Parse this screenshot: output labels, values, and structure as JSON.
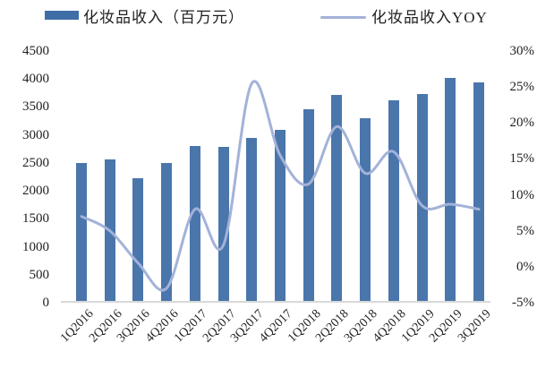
{
  "legend": {
    "bar_label": "化妆品收入（百万元）",
    "line_label": "化妆品收入YOY"
  },
  "chart_data": {
    "type": "bar",
    "subtype": "bar+line combo, dual axis",
    "title": "",
    "xlabel": "",
    "ylabel_left": "",
    "ylabel_right": "",
    "grid": false,
    "legend_position": "top",
    "categories": [
      "1Q2016",
      "2Q2016",
      "3Q2016",
      "4Q2016",
      "1Q2017",
      "2Q2017",
      "3Q2017",
      "4Q2017",
      "1Q2018",
      "2Q2018",
      "3Q2018",
      "4Q2018",
      "1Q2019",
      "2Q2019",
      "3Q2019"
    ],
    "series": [
      {
        "name": "化妆品收入（百万元）",
        "type": "bar",
        "axis": "left",
        "values": [
          2460,
          2530,
          2200,
          2470,
          2770,
          2760,
          2910,
          3060,
          3430,
          3690,
          3270,
          3580,
          3700,
          3980,
          3910
        ]
      },
      {
        "name": "化妆品收入YOY",
        "type": "line",
        "axis": "right",
        "values": [
          7,
          5,
          0.5,
          -3,
          8,
          3,
          25.5,
          15.5,
          11.5,
          19.5,
          13,
          16,
          8.5,
          8.7,
          8
        ]
      }
    ],
    "left_axis": {
      "min": 0,
      "max": 4500,
      "ticks": [
        "4500",
        "4000",
        "3500",
        "3000",
        "2500",
        "2000",
        "1500",
        "1000",
        "500",
        "0"
      ]
    },
    "right_axis": {
      "min": -5,
      "max": 30,
      "ticks": [
        "30%",
        "25%",
        "20%",
        "15%",
        "10%",
        "5%",
        "0%",
        "-5%"
      ]
    },
    "colors": {
      "bar": "#4a76ab",
      "bar_legend_swatch": "#3f6ea6",
      "line": "#a3b2d9",
      "axis_line": "#d9d9d9",
      "text": "#1f1f1f"
    }
  }
}
